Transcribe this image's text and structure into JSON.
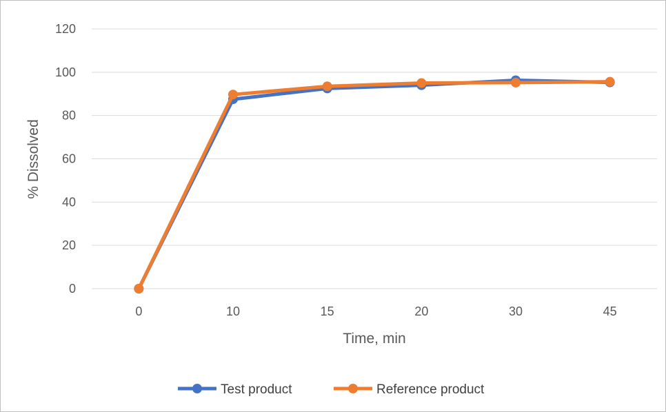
{
  "chart_data": {
    "type": "line",
    "categories": [
      "0",
      "10",
      "15",
      "20",
      "30",
      "45"
    ],
    "xlabel": "Time, min",
    "ylabel": "% Dissolved",
    "ylim": [
      0,
      120
    ],
    "ytick_step": 20,
    "yticks": [
      "0",
      "20",
      "40",
      "60",
      "80",
      "100",
      "120"
    ],
    "grid": true,
    "legend_position": "bottom",
    "series": [
      {
        "name": "Test product",
        "values": [
          0,
          87.5,
          92.5,
          94.0,
          96.3,
          95.3
        ],
        "color": "#4472C4"
      },
      {
        "name": "Reference product",
        "values": [
          0,
          89.7,
          93.5,
          95.0,
          95.2,
          95.6
        ],
        "color": "#ED7D31"
      }
    ]
  }
}
